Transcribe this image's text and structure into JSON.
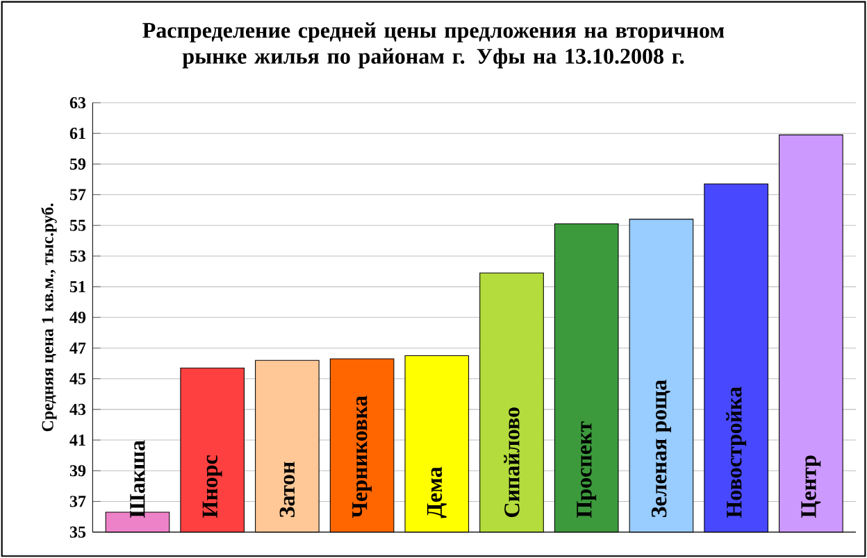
{
  "chart_data": {
    "type": "bar",
    "title": "Распределение средней цены предложения на вторичном рынке жилья по районам г. Уфы на 13.10.2008 г.",
    "ylabel": "Средняя цена 1 кв.м., тыс.руб.",
    "categories": [
      "Шакша",
      "Инорс",
      "Затон",
      "Черниковка",
      "Дема",
      "Сипайлово",
      "Проспект",
      "Зеленая роща",
      "Новостройка",
      "Центр"
    ],
    "values": [
      36.3,
      45.7,
      46.2,
      46.3,
      46.5,
      51.9,
      55.1,
      55.4,
      57.7,
      60.9
    ],
    "colors": [
      "#ee82c8",
      "#ff4040",
      "#ffc896",
      "#ff6600",
      "#ffff00",
      "#b4dc3c",
      "#3c9a3c",
      "#99ccff",
      "#4848ff",
      "#cc99ff"
    ],
    "ylim": [
      35,
      63
    ],
    "yticks": [
      35,
      37,
      39,
      41,
      43,
      45,
      47,
      49,
      51,
      53,
      55,
      57,
      59,
      61,
      63
    ],
    "grid": "y"
  }
}
